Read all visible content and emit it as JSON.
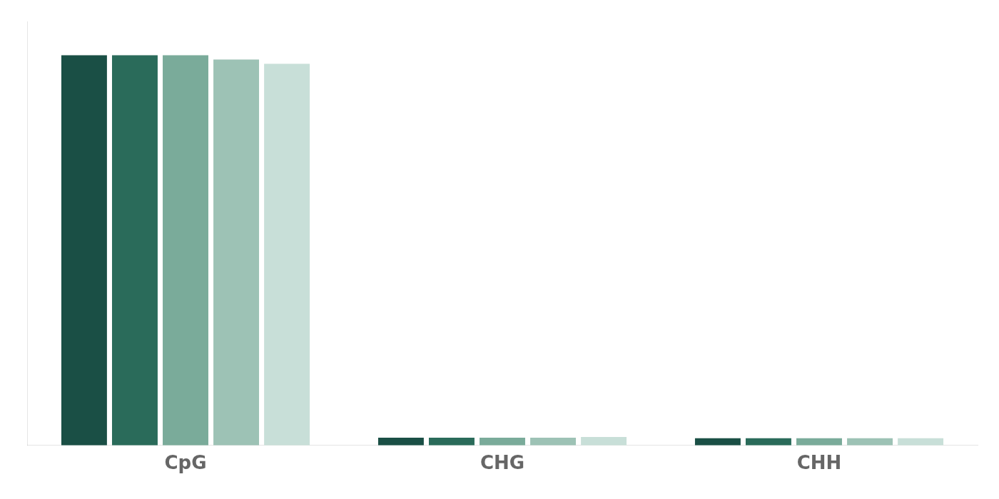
{
  "chart_data": {
    "type": "bar",
    "categories": [
      "CpG",
      "CHG",
      "CHH"
    ],
    "series": [
      {
        "color": "#1a4f45",
        "values": [
          0.92,
          0.018,
          0.017
        ]
      },
      {
        "color": "#2a6b5a",
        "values": [
          0.92,
          0.018,
          0.017
        ]
      },
      {
        "color": "#7aab9a",
        "values": [
          0.92,
          0.018,
          0.017
        ]
      },
      {
        "color": "#9dc2b5",
        "values": [
          0.91,
          0.018,
          0.017
        ]
      },
      {
        "color": "#c8dfd8",
        "values": [
          0.9,
          0.02,
          0.017
        ]
      }
    ],
    "ylim": [
      0,
      1.0
    ],
    "grid": false,
    "tick_labels": "x"
  }
}
